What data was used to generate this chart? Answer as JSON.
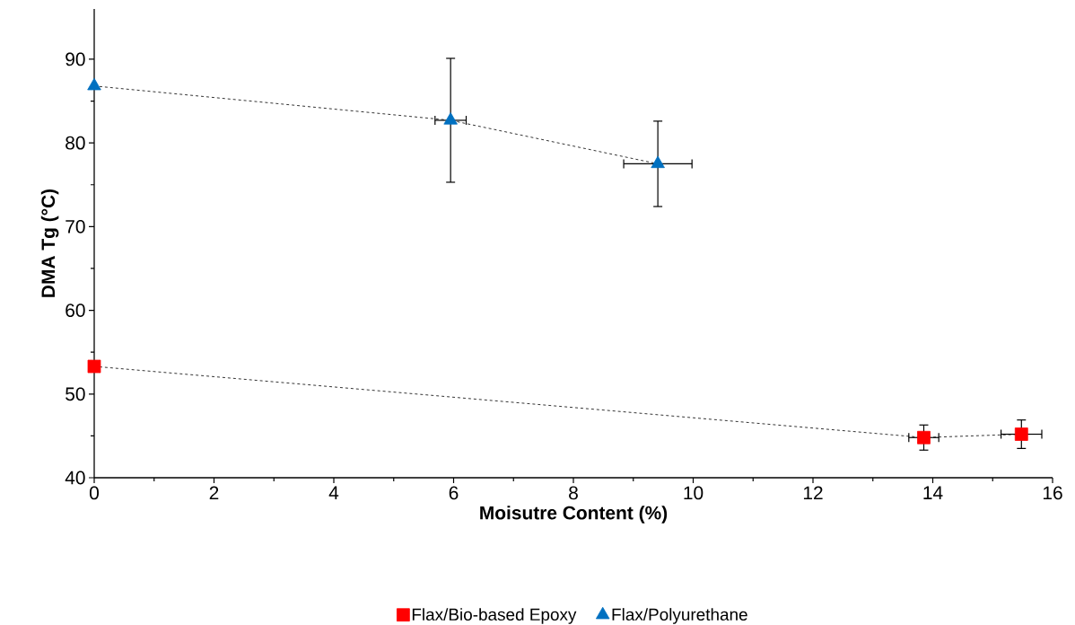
{
  "chart_data": {
    "type": "line",
    "xlabel": "Moisutre Content (%)",
    "ylabel": "DMA Tg (°C)",
    "xlim": [
      0,
      16
    ],
    "xticks": [
      0,
      2,
      4,
      6,
      8,
      10,
      12,
      14,
      16
    ],
    "ylim": [
      40,
      96
    ],
    "yticks": [
      40,
      50,
      60,
      70,
      80,
      90
    ],
    "grid": false,
    "legend": "bottom",
    "line_style": "dashed",
    "series": [
      {
        "name": "Flax/Bio-based Epoxy",
        "color": "#ff0000",
        "marker": "square",
        "x": [
          0,
          13.85,
          15.48
        ],
        "values": [
          53.3,
          44.8,
          45.2
        ],
        "errors": [
          null,
          1.5,
          1.7
        ],
        "xerrors": [
          null,
          0.25,
          0.34
        ]
      },
      {
        "name": "Flax/Polyurethane",
        "color": "#0070c0",
        "marker": "triangle",
        "x": [
          0,
          5.95,
          9.41
        ],
        "values": [
          86.8,
          82.7,
          77.5
        ],
        "errors": [
          null,
          7.4,
          5.1
        ],
        "xerrors": [
          null,
          0.26,
          0.57
        ]
      }
    ]
  }
}
